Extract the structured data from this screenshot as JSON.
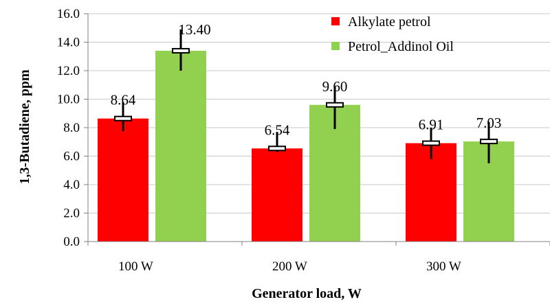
{
  "chart_data": {
    "type": "bar",
    "xlabel": "Generator load, W",
    "ylabel": "1,3-Butadiene, ppm",
    "categories": [
      "100 W",
      "200 W",
      "300 W"
    ],
    "ylim": [
      0,
      16
    ],
    "yticks": [
      "0.0",
      "2.0",
      "4.0",
      "6.0",
      "8.0",
      "10.0",
      "12.0",
      "14.0",
      "16.0"
    ],
    "grid": true,
    "legend_position": "top-right",
    "series": [
      {
        "name": "Alkylate petrol",
        "color": "#ff0000",
        "values": [
          8.64,
          6.54,
          6.91
        ],
        "labels": [
          "8.64",
          "6.54",
          "6.91"
        ],
        "error_low": [
          7.75,
          6.3,
          5.8
        ],
        "error_high": [
          9.8,
          7.7,
          8.0
        ]
      },
      {
        "name": "Petrol_Addinol Oil",
        "color": "#92d050",
        "values": [
          13.4,
          9.6,
          7.03
        ],
        "labels": [
          "13.40",
          "9.60",
          "7.03"
        ],
        "error_low": [
          12.0,
          7.9,
          5.5
        ],
        "error_high": [
          14.9,
          10.9,
          8.4
        ]
      }
    ]
  }
}
